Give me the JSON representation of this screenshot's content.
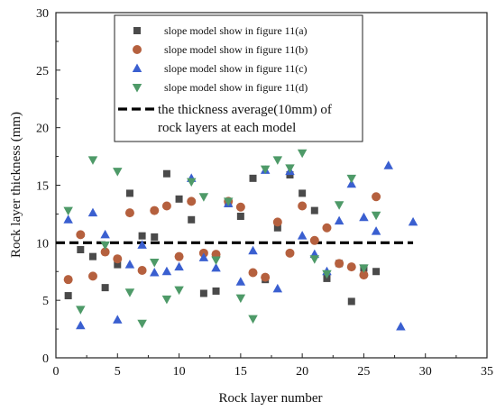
{
  "chart_data": {
    "type": "scatter",
    "xlabel": "Rock layer number",
    "ylabel": "Rock layer thickness (mm)",
    "xlim": [
      0,
      35
    ],
    "ylim": [
      0,
      30
    ],
    "x_ticks": [
      "0",
      "5",
      "10",
      "15",
      "20",
      "25",
      "30",
      "35"
    ],
    "y_ticks": [
      "0",
      "5",
      "10",
      "15",
      "20",
      "25",
      "30"
    ],
    "grid": false,
    "legend_position": "top-center",
    "series": [
      {
        "name": "slope model show in figure 11(a)",
        "marker": "square",
        "color": "#4a4a4a",
        "x": [
          1,
          2,
          3,
          4,
          5,
          6,
          7,
          8,
          9,
          10,
          11,
          12,
          13,
          14,
          15,
          16,
          17,
          18,
          19,
          20,
          21,
          22,
          23,
          24,
          25,
          26
        ],
        "y": [
          5.4,
          9.4,
          8.8,
          6.1,
          8.1,
          14.3,
          10.6,
          10.5,
          16.0,
          13.8,
          12.0,
          5.6,
          5.8,
          13.4,
          12.3,
          15.6,
          6.8,
          11.3,
          15.9,
          14.3,
          12.8,
          6.9,
          8.2,
          4.9,
          7.8,
          7.5
        ]
      },
      {
        "name": "slope model show in figure 11(b)",
        "marker": "circle",
        "color": "#b5603e",
        "x": [
          1,
          2,
          3,
          4,
          5,
          6,
          7,
          8,
          9,
          10,
          11,
          12,
          13,
          14,
          15,
          16,
          17,
          18,
          19,
          20,
          21,
          22,
          23,
          24,
          25,
          26
        ],
        "y": [
          6.8,
          10.7,
          7.1,
          9.2,
          8.6,
          12.6,
          7.6,
          12.8,
          13.2,
          8.8,
          13.6,
          9.1,
          9.0,
          13.6,
          13.1,
          7.4,
          7.0,
          11.8,
          9.1,
          13.2,
          10.2,
          11.3,
          8.2,
          7.9,
          7.2,
          14.0
        ]
      },
      {
        "name": "slope model show in figure 11(c)",
        "marker": "triangle-up",
        "color": "#3a5fd0",
        "x": [
          1,
          2,
          3,
          4,
          5,
          6,
          7,
          8,
          9,
          10,
          11,
          12,
          13,
          14,
          15,
          16,
          17,
          18,
          19,
          20,
          21,
          22,
          23,
          24,
          25,
          26,
          27,
          28,
          29
        ],
        "y": [
          12.0,
          2.8,
          12.6,
          10.7,
          3.3,
          8.1,
          9.8,
          7.4,
          7.5,
          7.9,
          15.6,
          8.7,
          7.8,
          13.4,
          6.6,
          9.3,
          16.3,
          6.0,
          16.2,
          10.6,
          9.0,
          7.5,
          11.9,
          15.1,
          12.2,
          11.0,
          16.7,
          2.7,
          11.8
        ]
      },
      {
        "name": "slope model show in figure 11(d)",
        "marker": "triangle-down",
        "color": "#4e9a68",
        "x": [
          1,
          2,
          3,
          4,
          5,
          6,
          7,
          8,
          9,
          10,
          11,
          12,
          13,
          14,
          15,
          16,
          17,
          18,
          19,
          20,
          21,
          22,
          23,
          24,
          25,
          26
        ],
        "y": [
          12.8,
          4.2,
          17.2,
          9.8,
          16.2,
          5.7,
          3.0,
          8.3,
          5.1,
          5.9,
          15.3,
          14.0,
          8.5,
          13.6,
          5.2,
          3.4,
          16.4,
          17.2,
          16.5,
          17.8,
          8.6,
          7.3,
          13.3,
          15.6,
          7.8,
          12.4
        ]
      }
    ],
    "reference_line": {
      "name_line1": "the thickness average(10mm) of",
      "name_line2": "rock  layers at each model",
      "y": 10,
      "x_range": [
        0,
        29
      ],
      "style": "dashed",
      "color": "#000000"
    }
  }
}
